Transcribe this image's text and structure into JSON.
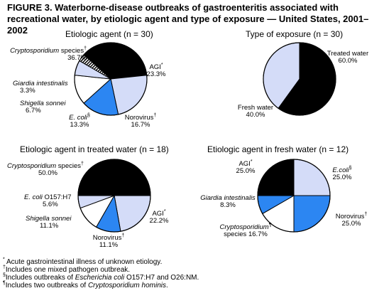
{
  "figure_title_line1": "FIGURE 3. Waterborne-disease outbreaks of gastroenteritis associated with",
  "figure_title_line2": "recreational water, by etiologic agent and type of exposure — United States, 2001–2002",
  "colors": {
    "black": "#000000",
    "light_blue": "#d4dcf8",
    "blue": "#2c86f2",
    "white": "#ffffff",
    "hatched": "hatched-black-white"
  },
  "chart_data": [
    {
      "type": "pie",
      "title": "Etiologic agent (n = 30)",
      "slices": [
        {
          "label": "Cryptosporidium species",
          "mark": "†",
          "value": 36.7,
          "value_label": "36.7%",
          "color": "#000000"
        },
        {
          "label": "AGI",
          "mark": "*",
          "value": 23.3,
          "value_label": "23.3%",
          "color": "#d4dcf8"
        },
        {
          "label": "Norovirus",
          "mark": "†",
          "value": 16.7,
          "value_label": "16.7%",
          "color": "#2c86f2"
        },
        {
          "label": "E. coli",
          "mark": "§",
          "value": 13.3,
          "value_label": "13.3%",
          "color": "#ffffff"
        },
        {
          "label": "Shigella sonnei",
          "mark": "",
          "value": 6.7,
          "value_label": "6.7%",
          "color": "#d4dcf8"
        },
        {
          "label": "Giardia intestinalis",
          "mark": "",
          "value": 3.3,
          "value_label": "3.3%",
          "color": "hatched"
        }
      ]
    },
    {
      "type": "pie",
      "title": "Type of exposure (n = 30)",
      "slices": [
        {
          "label": "Treated water",
          "mark": "",
          "value": 60.0,
          "value_label": "60.0%",
          "color": "#000000"
        },
        {
          "label": "Fresh water",
          "mark": "",
          "value": 40.0,
          "value_label": "40.0%",
          "color": "#d4dcf8"
        }
      ]
    },
    {
      "type": "pie",
      "title": "Etiologic agent in treated water (n = 18)",
      "slices": [
        {
          "label": "Cryptosporidium species",
          "mark": "†",
          "value": 50.0,
          "value_label": "50.0%",
          "color": "#000000"
        },
        {
          "label": "AGI",
          "mark": "*",
          "value": 22.2,
          "value_label": "22.2%",
          "color": "#d4dcf8"
        },
        {
          "label": "Norovirus",
          "mark": "†",
          "value": 11.1,
          "value_label": "11.1%",
          "color": "#2c86f2"
        },
        {
          "label": "Shigella sonnei",
          "mark": "",
          "value": 11.1,
          "value_label": "11.1%",
          "color": "#ffffff"
        },
        {
          "label": "E. coli O157:H7",
          "mark": "",
          "value": 5.6,
          "value_label": "5.6%",
          "color": "#d4dcf8"
        }
      ]
    },
    {
      "type": "pie",
      "title": "Etiologic agent in fresh water (n = 12)",
      "slices": [
        {
          "label": "E.coli",
          "mark": "§",
          "value": 25.0,
          "value_label": "25.0%",
          "color": "#d4dcf8"
        },
        {
          "label": "Norovirus",
          "mark": "†",
          "value": 25.0,
          "value_label": "25.0%",
          "color": "#2c86f2"
        },
        {
          "label": "Cryptosporidium species",
          "mark": "¶",
          "value": 16.7,
          "value_label": "16.7%",
          "color": "#ffffff"
        },
        {
          "label": "Giardia intestinalis",
          "mark": "",
          "value": 8.3,
          "value_label": "8.3%",
          "color": "#2c86f2"
        },
        {
          "label": "AGI",
          "mark": "*",
          "value": 25.0,
          "value_label": "25.0%",
          "color": "#000000"
        }
      ]
    }
  ],
  "labels": {
    "p1": {
      "crypto_name": "Cryptosporidium",
      "crypto_rest": " species",
      "crypto_mark": "†",
      "crypto_pct": "36.7%",
      "agi_name": "AGI",
      "agi_mark": "*",
      "agi_pct": "23.3%",
      "giardia_name": "Giardia intestinalis",
      "giardia_pct": "3.3%",
      "shigella_name": "Shigella sonnei",
      "shigella_pct": "6.7%",
      "ecoli_name": "E. coli",
      "ecoli_mark": "§",
      "ecoli_pct": "13.3%",
      "noro_name": "Norovirus",
      "noro_mark": "†",
      "noro_pct": "16.7%"
    },
    "p2": {
      "treated_name": "Treated water",
      "treated_pct": "60.0%",
      "fresh_name": "Fresh water",
      "fresh_pct": "40.0%"
    },
    "p3": {
      "crypto_name": "Cryptosporidium",
      "crypto_rest": " species",
      "crypto_mark": "†",
      "crypto_pct": "50.0%",
      "ecoli_name": "E. coli",
      "ecoli_rest": " O157:H7",
      "ecoli_pct": "5.6%",
      "shigella_name": "Shigella sonnei",
      "shigella_pct": "11.1%",
      "noro_name": "Norovirus",
      "noro_mark": "†",
      "noro_pct": "11.1%",
      "agi_name": "AGI",
      "agi_mark": "*",
      "agi_pct": "22.2%"
    },
    "p4": {
      "agi_name": "AGI",
      "agi_mark": "*",
      "agi_pct": "25.0%",
      "ecoli_name": "E.coli",
      "ecoli_mark": "§",
      "ecoli_pct": "25.0%",
      "giardia_name": "Giardia intestinalis",
      "giardia_pct": "8.3%",
      "noro_name": "Norovirus",
      "noro_mark": "†",
      "noro_pct": "25.0%",
      "crypto_name": "Cryptosporidium",
      "crypto_mark": "¶",
      "crypto_rest": "species 16.7%"
    }
  },
  "footnotes": {
    "f1_mark": "*",
    "f1_text": " Acute gastrointestinal illness of unknown etiology.",
    "f2_mark": "†",
    "f2_text": "Includes one mixed pathogen outbreak.",
    "f3_mark": "§",
    "f3_pre": "Includes outbreaks of ",
    "f3_italic": "Escherichia coli",
    "f3_post": " O157:H7 and O26:NM.",
    "f4_mark": "¶",
    "f4_pre": "Includes two outbreaks of ",
    "f4_italic": "Cryptosporidium hominis",
    "f4_post": "."
  }
}
